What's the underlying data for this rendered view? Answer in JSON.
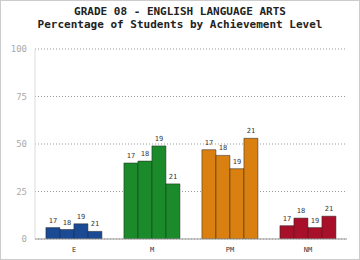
{
  "chart_data": {
    "type": "bar",
    "title": "GRADE 08 - ENGLISH LANGUAGE ARTS",
    "subtitle": "Percentage of Students by Achievement Level",
    "categories": [
      "E",
      "M",
      "PM",
      "NM"
    ],
    "series": [
      {
        "name": "17",
        "values": [
          6,
          40,
          47,
          7
        ]
      },
      {
        "name": "18",
        "values": [
          5,
          41,
          44,
          11
        ]
      },
      {
        "name": "19",
        "values": [
          8,
          49,
          37,
          6
        ]
      },
      {
        "name": "21",
        "values": [
          4,
          29,
          53,
          12
        ]
      }
    ],
    "colors": [
      "#1a4a94",
      "#1a8a2a",
      "#d98010",
      "#a8102a"
    ],
    "ylim": [
      0,
      100
    ],
    "yticks": [
      0,
      25,
      50,
      75,
      100
    ],
    "grid": true
  }
}
